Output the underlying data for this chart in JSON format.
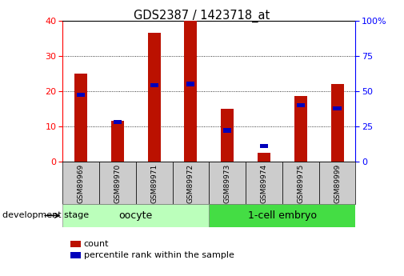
{
  "title": "GDS2387 / 1423718_at",
  "samples": [
    "GSM89969",
    "GSM89970",
    "GSM89971",
    "GSM89972",
    "GSM89973",
    "GSM89974",
    "GSM89975",
    "GSM89999"
  ],
  "counts": [
    25,
    11.5,
    36.5,
    40,
    15,
    2.5,
    18.5,
    22
  ],
  "percentile_ranks": [
    47.5,
    28,
    54,
    55,
    22,
    11,
    40,
    37.5
  ],
  "ylim_left": [
    0,
    40
  ],
  "ylim_right": [
    0,
    100
  ],
  "yticks_left": [
    0,
    10,
    20,
    30,
    40
  ],
  "yticks_right": [
    0,
    25,
    50,
    75,
    100
  ],
  "bar_color": "#BB1100",
  "percentile_color": "#0000BB",
  "background_color": "#FFFFFF",
  "oocyte_color": "#BBFFBB",
  "embryo_color": "#44DD44",
  "xlabel_box_color": "#CCCCCC",
  "development_stage_label": "development stage",
  "legend_count_label": "count",
  "legend_percentile_label": "percentile rank within the sample",
  "oocyte_label": "oocyte",
  "embryo_label": "1-cell embryo"
}
